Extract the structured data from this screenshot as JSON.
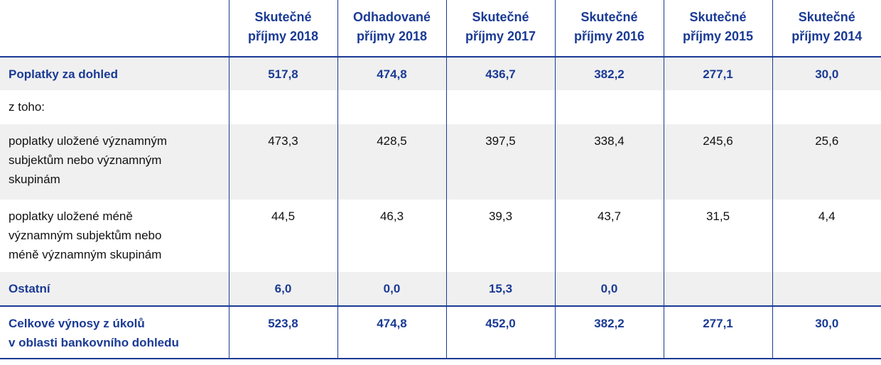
{
  "table": {
    "header": [
      "Skutečné\npříjmy 2018",
      "Odhadované\npříjmy 2018",
      "Skutečné\npříjmy 2017",
      "Skutečné\npříjmy 2016",
      "Skutečné\npříjmy 2015",
      "Skutečné\npříjmy 2014"
    ],
    "rows": [
      {
        "label": "Poplatky za dohled",
        "cells": [
          "517,8",
          "474,8",
          "436,7",
          "382,2",
          "277,1",
          "30,0"
        ]
      },
      {
        "label": "z toho:",
        "cells": [
          null,
          null,
          null,
          null,
          null,
          null
        ]
      },
      {
        "label": "poplatky uložené významným\nsubjektům nebo významným\nskupinám",
        "cells": [
          "473,3",
          "428,5",
          "397,5",
          "338,4",
          "245,6",
          "25,6"
        ]
      },
      {
        "label": "poplatky uložené méně\nvýznamným subjektům nebo\nméně významným skupinám",
        "cells": [
          "44,5",
          "46,3",
          "39,3",
          "43,7",
          "31,5",
          "4,4"
        ]
      },
      {
        "label": "Ostatní",
        "cells": [
          "6,0",
          "0,0",
          "15,3",
          "0,0",
          null,
          null
        ]
      },
      {
        "label": "Celkové výnosy z úkolů\nv oblasti bankovního dohledu",
        "cells": [
          "523,8",
          "474,8",
          "452,0",
          "382,2",
          "277,1",
          "30,0"
        ]
      }
    ]
  }
}
